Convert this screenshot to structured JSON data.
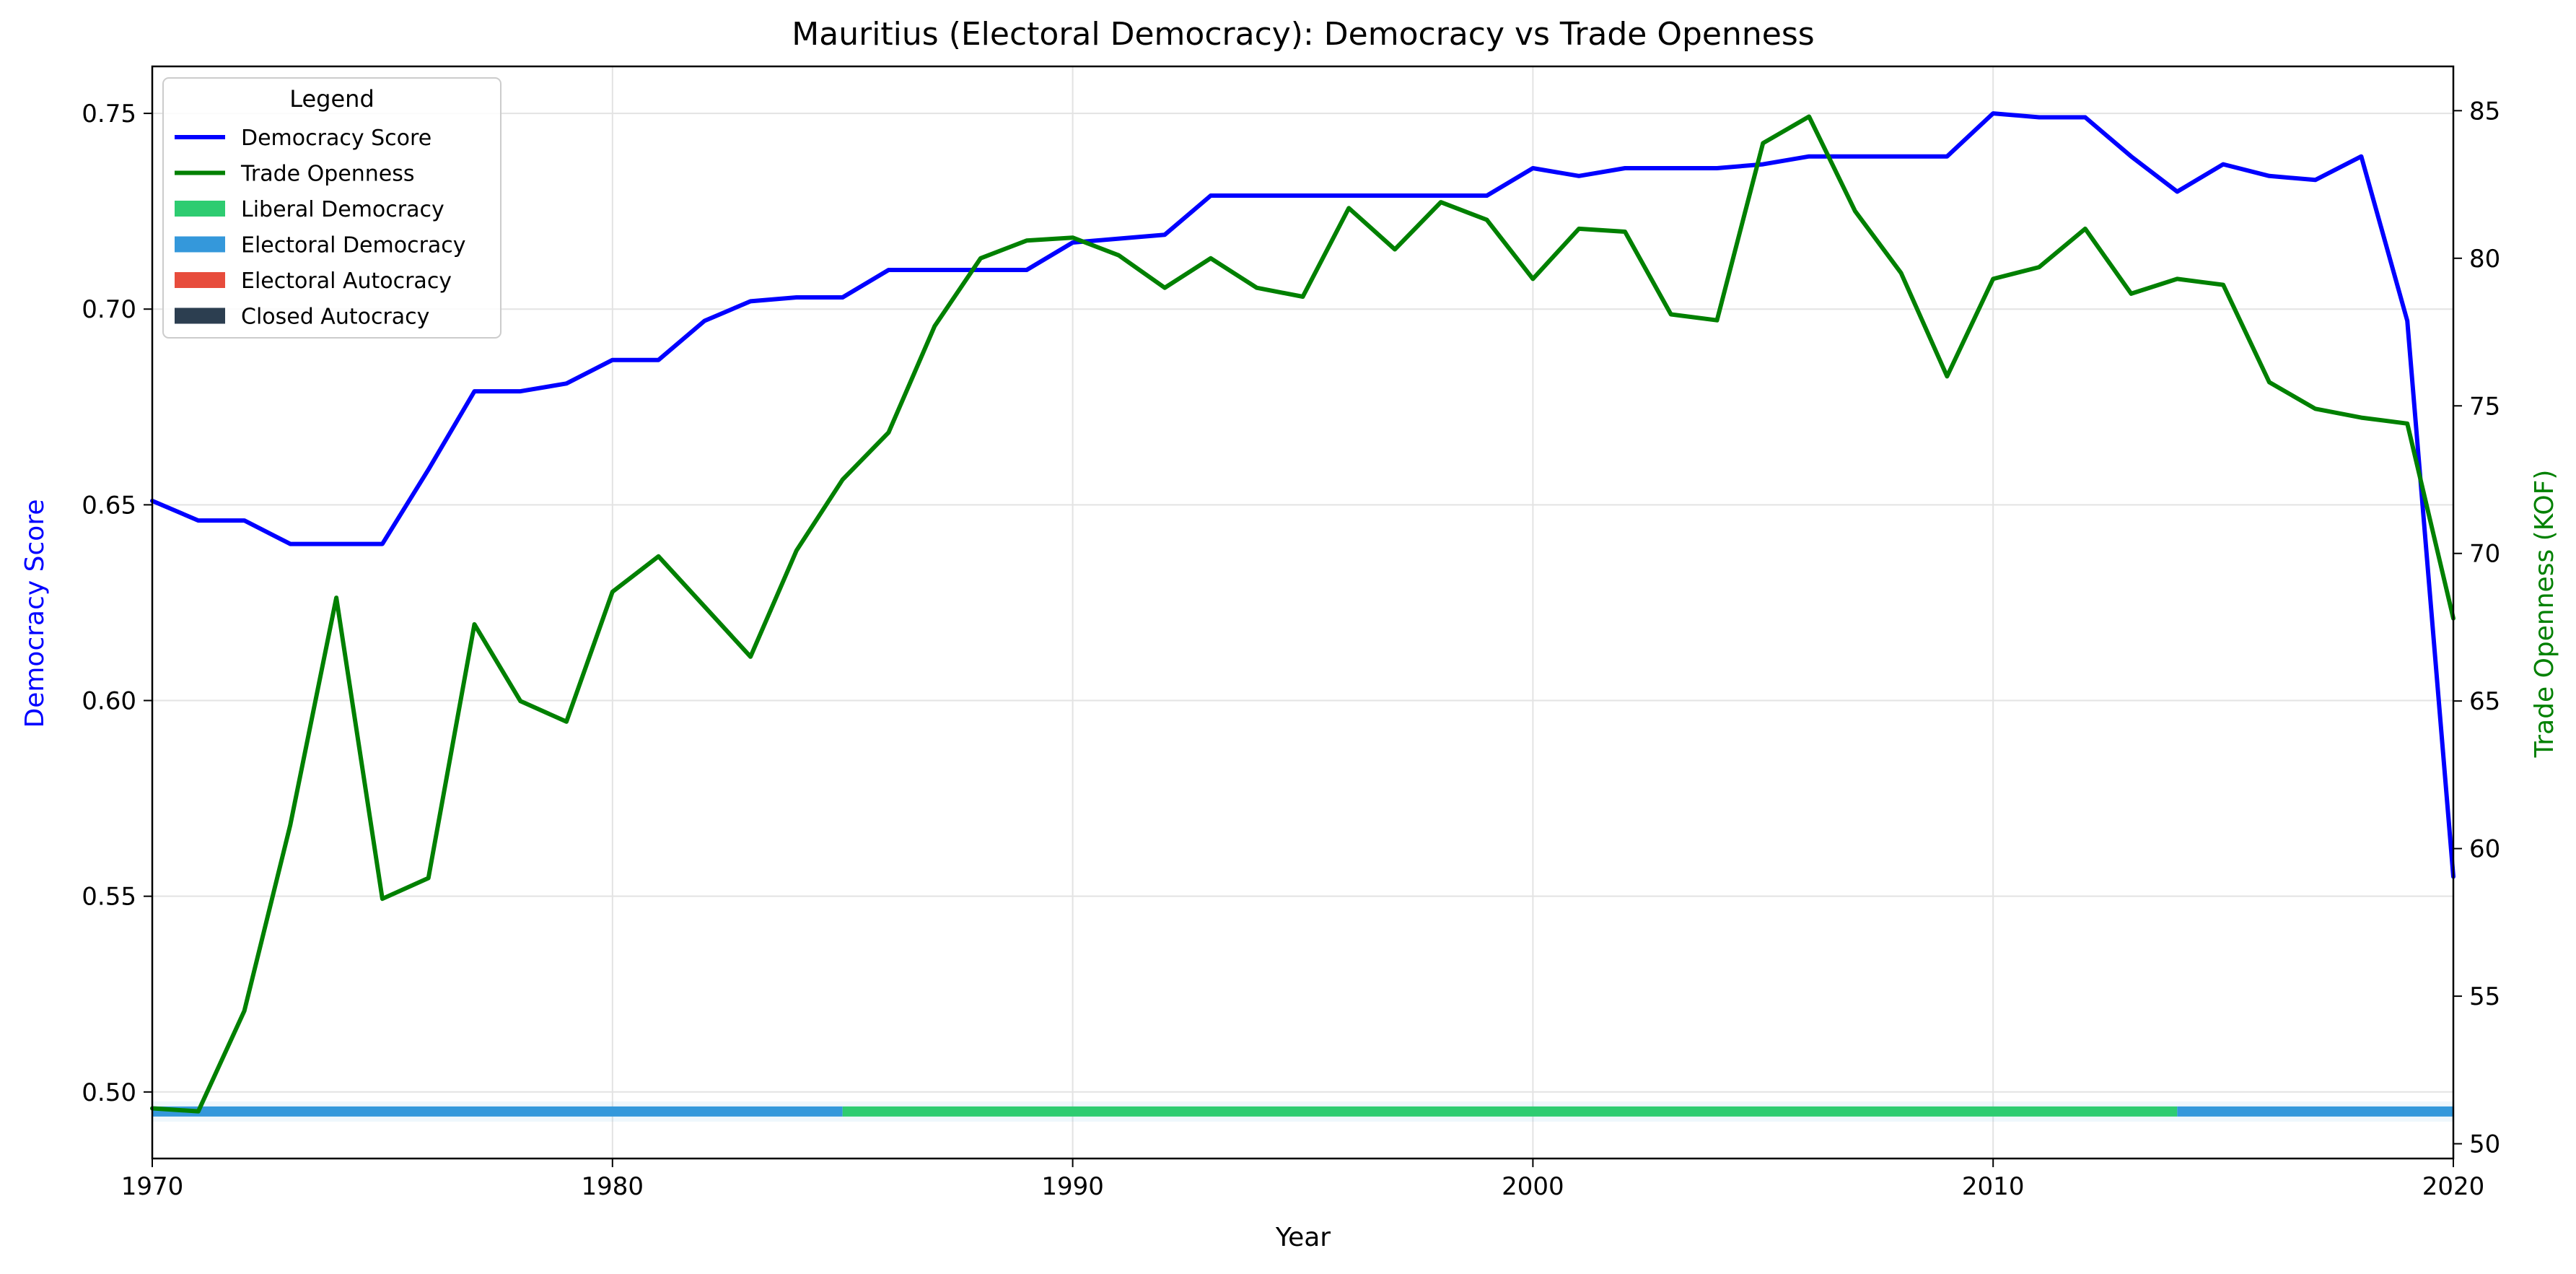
{
  "chart_data": {
    "type": "line",
    "title": "Mauritius (Electoral Democracy): Democracy vs Trade Openness",
    "xlabel": "Year",
    "ylabel_left": "Democracy Score",
    "ylabel_right": "Trade Openness (KOF)",
    "xlim": [
      1970,
      2020
    ],
    "ylim_left": [
      0.483,
      0.762
    ],
    "ylim_right": [
      49.5,
      86.5
    ],
    "x_ticks": [
      1970,
      1980,
      1990,
      2000,
      2010,
      2020
    ],
    "y_ticks_left": [
      "0.50",
      "0.55",
      "0.60",
      "0.65",
      "0.70",
      "0.75"
    ],
    "y_ticks_right": [
      "50",
      "55",
      "60",
      "65",
      "70",
      "75",
      "80",
      "85"
    ],
    "grid": true,
    "legend": {
      "title": "Legend",
      "placement": "top-left",
      "entries": [
        {
          "label": "Democracy Score",
          "kind": "line",
          "color": "#0000ff"
        },
        {
          "label": "Trade Openness",
          "kind": "line",
          "color": "#008000"
        },
        {
          "label": "Liberal Democracy",
          "kind": "patch",
          "color": "#2ecc71"
        },
        {
          "label": "Electoral Democracy",
          "kind": "patch",
          "color": "#3498db"
        },
        {
          "label": "Electoral Autocracy",
          "kind": "patch",
          "color": "#e74c3c"
        },
        {
          "label": "Closed Autocracy",
          "kind": "patch",
          "color": "#2c3e50"
        }
      ]
    },
    "x": [
      1970,
      1971,
      1972,
      1973,
      1974,
      1975,
      1976,
      1977,
      1978,
      1979,
      1980,
      1981,
      1982,
      1983,
      1984,
      1985,
      1986,
      1987,
      1988,
      1989,
      1990,
      1991,
      1992,
      1993,
      1994,
      1995,
      1996,
      1997,
      1998,
      1999,
      2000,
      2001,
      2002,
      2003,
      2004,
      2005,
      2006,
      2007,
      2008,
      2009,
      2010,
      2011,
      2012,
      2013,
      2014,
      2015,
      2016,
      2017,
      2018,
      2019,
      2020
    ],
    "series": [
      {
        "name": "Democracy Score",
        "axis": "left",
        "color": "#0000ff",
        "values": [
          0.651,
          0.646,
          0.646,
          0.64,
          0.64,
          0.64,
          0.659,
          0.679,
          0.679,
          0.681,
          0.687,
          0.687,
          0.697,
          0.702,
          0.703,
          0.703,
          0.71,
          0.71,
          0.71,
          0.71,
          0.717,
          0.718,
          0.719,
          0.729,
          0.729,
          0.729,
          0.729,
          0.729,
          0.729,
          0.729,
          0.736,
          0.734,
          0.736,
          0.736,
          0.736,
          0.737,
          0.739,
          0.739,
          0.739,
          0.739,
          0.75,
          0.749,
          0.749,
          0.739,
          0.73,
          0.737,
          0.734,
          0.733,
          0.739,
          0.697,
          0.555
        ]
      },
      {
        "name": "Trade Openness",
        "axis": "right",
        "color": "#008000",
        "values": [
          51.2,
          51.1,
          54.5,
          60.8,
          68.5,
          58.3,
          59.0,
          67.6,
          65.0,
          64.3,
          68.7,
          69.9,
          68.2,
          66.5,
          70.1,
          72.5,
          74.1,
          77.7,
          80.0,
          80.6,
          80.7,
          80.1,
          79.0,
          80.0,
          79.0,
          78.7,
          81.7,
          80.3,
          81.9,
          81.3,
          79.3,
          81.0,
          80.9,
          78.1,
          77.9,
          83.9,
          84.8,
          81.6,
          79.5,
          76.0,
          79.3,
          79.7,
          81.0,
          78.8,
          79.3,
          79.1,
          75.8,
          74.9,
          74.6,
          74.4,
          67.8
        ]
      }
    ],
    "regime_bands": [
      {
        "start": 1970,
        "end": 1985,
        "regime": "Electoral Democracy",
        "color": "#3498db"
      },
      {
        "start": 1985,
        "end": 2014,
        "regime": "Liberal Democracy",
        "color": "#2ecc71"
      },
      {
        "start": 2014,
        "end": 2020,
        "regime": "Electoral Democracy",
        "color": "#3498db"
      }
    ]
  }
}
